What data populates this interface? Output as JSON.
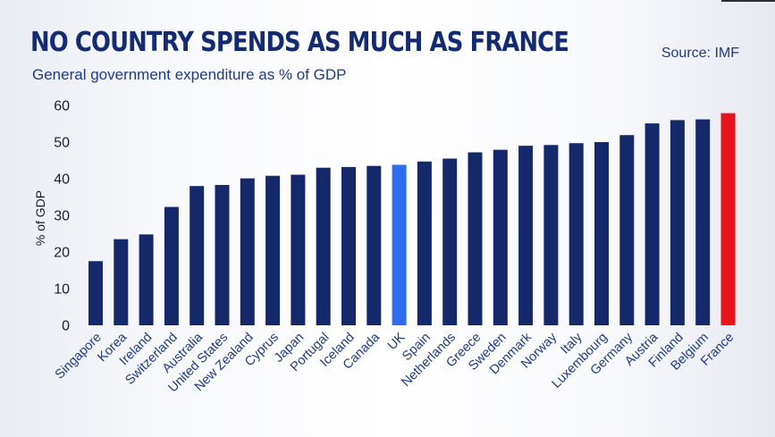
{
  "header": {
    "title": "NO COUNTRY SPENDS AS MUCH AS FRANCE",
    "subtitle": "General government expenditure as % of GDP",
    "source": "Source: IMF"
  },
  "colors": {
    "default_bar": "#14286a",
    "uk_bar": "#2f6df0",
    "france_bar": "#e8141c",
    "title": "#142b73"
  },
  "chart_data": {
    "type": "bar",
    "ylabel": "% of GDP",
    "ylim": [
      0,
      60
    ],
    "yticks": [
      0,
      10,
      20,
      30,
      40,
      50,
      60
    ],
    "grid": false,
    "categories": [
      "Singapore",
      "Korea",
      "Ireland",
      "Switzerland",
      "Australia",
      "United States",
      "New Zealand",
      "Cyprus",
      "Japan",
      "Portugal",
      "Iceland",
      "Canada",
      "UK",
      "Spain",
      "Netherlands",
      "Greece",
      "Sweden",
      "Denmark",
      "Norway",
      "Italy",
      "Luxembourg",
      "Germany",
      "Austria",
      "Finland",
      "Belgium",
      "France"
    ],
    "values": [
      17.5,
      23.5,
      24.8,
      32.3,
      38,
      38.3,
      40.1,
      40.8,
      41.1,
      43,
      43.2,
      43.5,
      43.8,
      44.7,
      45.5,
      47.2,
      47.9,
      49,
      49.2,
      49.7,
      50,
      51.9,
      55.1,
      56,
      56.2,
      57.9
    ],
    "highlights": {
      "UK": "uk_bar",
      "France": "france_bar"
    }
  }
}
